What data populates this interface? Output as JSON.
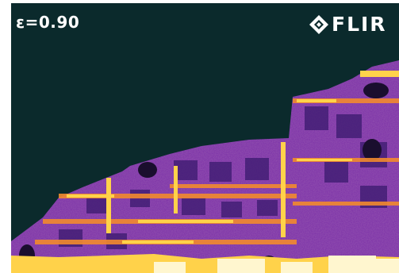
{
  "overlay": {
    "emissivity_label": "ε=0.90",
    "brand_logo_text": "FLIR"
  },
  "palette": {
    "sky": "#0b2a2c",
    "cold": "#3a1a6e",
    "cool": "#7a2fa8",
    "mid": "#c5459a",
    "warm": "#f28a2e",
    "hot": "#ffd24a",
    "hottest": "#fff6cf"
  }
}
